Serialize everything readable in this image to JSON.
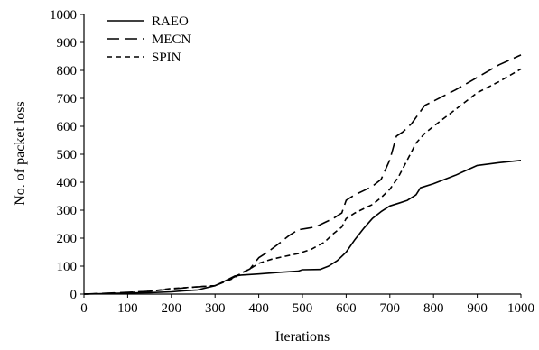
{
  "chart_data": {
    "type": "line",
    "title": "",
    "xlabel": "Iterations",
    "ylabel": "No. of packet loss",
    "xlim": [
      0,
      1000
    ],
    "ylim": [
      0,
      1000
    ],
    "xticks": [
      "0",
      "100",
      "200",
      "300",
      "400",
      "500",
      "600",
      "700",
      "800",
      "900",
      "1000"
    ],
    "yticks": [
      "0",
      "100",
      "200",
      "300",
      "400",
      "500",
      "600",
      "700",
      "800",
      "900",
      "1000"
    ],
    "grid": false,
    "legend_position": "top-left",
    "series": [
      {
        "name": "RAEO",
        "style": "solid",
        "color": "#000000",
        "points": [
          [
            0,
            0
          ],
          [
            50,
            2
          ],
          [
            100,
            4
          ],
          [
            150,
            5
          ],
          [
            200,
            8
          ],
          [
            230,
            12
          ],
          [
            260,
            15
          ],
          [
            300,
            30
          ],
          [
            320,
            45
          ],
          [
            345,
            65
          ],
          [
            360,
            68
          ],
          [
            400,
            72
          ],
          [
            450,
            78
          ],
          [
            490,
            82
          ],
          [
            500,
            87
          ],
          [
            540,
            88
          ],
          [
            560,
            100
          ],
          [
            580,
            120
          ],
          [
            600,
            150
          ],
          [
            620,
            195
          ],
          [
            640,
            235
          ],
          [
            660,
            270
          ],
          [
            680,
            295
          ],
          [
            700,
            315
          ],
          [
            720,
            325
          ],
          [
            740,
            335
          ],
          [
            760,
            355
          ],
          [
            770,
            380
          ],
          [
            800,
            395
          ],
          [
            850,
            425
          ],
          [
            900,
            460
          ],
          [
            950,
            470
          ],
          [
            1000,
            478
          ]
        ]
      },
      {
        "name": "MECN",
        "style": "dashed",
        "color": "#000000",
        "points": [
          [
            0,
            0
          ],
          [
            50,
            3
          ],
          [
            100,
            6
          ],
          [
            150,
            10
          ],
          [
            200,
            18
          ],
          [
            250,
            25
          ],
          [
            300,
            30
          ],
          [
            330,
            50
          ],
          [
            345,
            62
          ],
          [
            360,
            75
          ],
          [
            380,
            90
          ],
          [
            400,
            130
          ],
          [
            420,
            150
          ],
          [
            450,
            185
          ],
          [
            470,
            210
          ],
          [
            490,
            230
          ],
          [
            510,
            235
          ],
          [
            530,
            240
          ],
          [
            550,
            255
          ],
          [
            570,
            270
          ],
          [
            590,
            290
          ],
          [
            600,
            335
          ],
          [
            620,
            355
          ],
          [
            640,
            370
          ],
          [
            660,
            385
          ],
          [
            680,
            410
          ],
          [
            700,
            480
          ],
          [
            715,
            565
          ],
          [
            730,
            580
          ],
          [
            750,
            610
          ],
          [
            780,
            675
          ],
          [
            800,
            690
          ],
          [
            850,
            730
          ],
          [
            900,
            775
          ],
          [
            950,
            820
          ],
          [
            1000,
            855
          ]
        ]
      },
      {
        "name": "SPIN",
        "style": "short-dashed",
        "color": "#000000",
        "points": [
          [
            0,
            0
          ],
          [
            50,
            2
          ],
          [
            100,
            5
          ],
          [
            150,
            10
          ],
          [
            200,
            20
          ],
          [
            250,
            25
          ],
          [
            300,
            30
          ],
          [
            340,
            55
          ],
          [
            360,
            75
          ],
          [
            380,
            90
          ],
          [
            400,
            110
          ],
          [
            430,
            125
          ],
          [
            460,
            135
          ],
          [
            490,
            145
          ],
          [
            520,
            160
          ],
          [
            550,
            185
          ],
          [
            570,
            215
          ],
          [
            590,
            240
          ],
          [
            600,
            270
          ],
          [
            620,
            290
          ],
          [
            640,
            305
          ],
          [
            660,
            320
          ],
          [
            680,
            345
          ],
          [
            700,
            375
          ],
          [
            720,
            420
          ],
          [
            740,
            480
          ],
          [
            760,
            540
          ],
          [
            780,
            575
          ],
          [
            800,
            600
          ],
          [
            850,
            660
          ],
          [
            900,
            720
          ],
          [
            950,
            760
          ],
          [
            1000,
            805
          ]
        ]
      }
    ]
  }
}
